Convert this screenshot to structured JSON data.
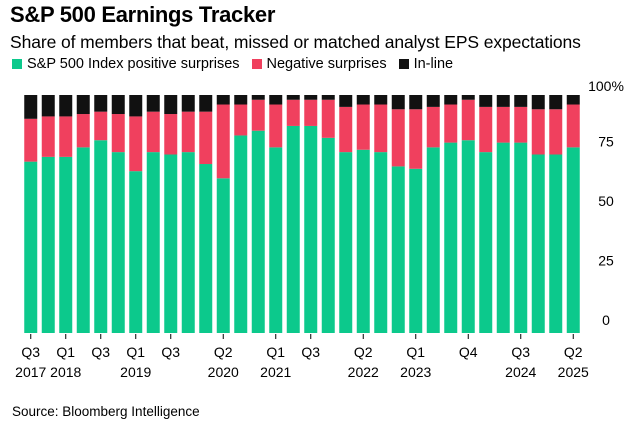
{
  "title": "S&P 500 Earnings Tracker",
  "subtitle": "Share of members that beat, missed or matched analyst EPS expectations",
  "source": "Source: Bloomberg Intelligence",
  "colors": {
    "positive": "#0cc98c",
    "negative": "#f0405e",
    "inline": "#111111"
  },
  "chart_data": {
    "type": "bar",
    "stacked": true,
    "legend_position": "top-left",
    "grid": false,
    "ylim": [
      0,
      100
    ],
    "y_ticks": [
      "0",
      "25",
      "50",
      "75",
      "100%"
    ],
    "y_tick_values": [
      0,
      25,
      50,
      75,
      100
    ],
    "categories": [
      "Q3 2017",
      "Q4 2017",
      "Q1 2018",
      "Q2 2018",
      "Q3 2018",
      "Q4 2018",
      "Q1 2019",
      "Q2 2019",
      "Q3 2019",
      "Q4 2019",
      "Q1 2020",
      "Q2 2020",
      "Q3 2020",
      "Q4 2020",
      "Q1 2021",
      "Q2 2021",
      "Q3 2021",
      "Q4 2021",
      "Q1 2022",
      "Q2 2022",
      "Q3 2022",
      "Q4 2022",
      "Q1 2023",
      "Q2 2023",
      "Q3 2023",
      "Q4 2023",
      "Q1 2024",
      "Q2 2024",
      "Q3 2024",
      "Q4 2024",
      "Q1 2025",
      "Q2 2025"
    ],
    "x_tick_labels": [
      {
        "index": 0,
        "quarter": "Q3",
        "year": "2017"
      },
      {
        "index": 2,
        "quarter": "Q1",
        "year": "2018"
      },
      {
        "index": 4,
        "quarter": "Q3",
        "year": ""
      },
      {
        "index": 6,
        "quarter": "Q1",
        "year": "2019"
      },
      {
        "index": 8,
        "quarter": "Q3",
        "year": ""
      },
      {
        "index": 11,
        "quarter": "Q2",
        "year": "2020"
      },
      {
        "index": 14,
        "quarter": "Q1",
        "year": "2021"
      },
      {
        "index": 16,
        "quarter": "Q3",
        "year": ""
      },
      {
        "index": 19,
        "quarter": "Q2",
        "year": "2022"
      },
      {
        "index": 22,
        "quarter": "Q1",
        "year": "2023"
      },
      {
        "index": 25,
        "quarter": "Q4",
        "year": ""
      },
      {
        "index": 28,
        "quarter": "Q3",
        "year": "2024"
      },
      {
        "index": 31,
        "quarter": "Q2",
        "year": "2025"
      }
    ],
    "series": [
      {
        "name": "S&P 500 Index positive surprises",
        "color": "#0cc98c",
        "values": [
          72,
          74,
          74,
          78,
          81,
          76,
          68,
          76,
          75,
          76,
          71,
          65,
          83,
          85,
          78,
          87,
          87,
          82,
          76,
          77,
          76,
          70,
          69,
          78,
          80,
          81,
          76,
          80,
          80,
          75,
          75,
          78
        ]
      },
      {
        "name": "Negative surprises",
        "color": "#f0405e",
        "values": [
          18,
          17,
          17,
          14,
          12,
          16,
          23,
          17,
          17,
          17,
          22,
          31,
          13,
          13,
          18,
          11,
          11,
          16,
          19,
          19,
          20,
          24,
          25,
          17,
          16,
          17,
          19,
          15,
          15,
          19,
          19,
          18
        ]
      },
      {
        "name": "In-line",
        "color": "#111111",
        "values": [
          10,
          9,
          9,
          8,
          7,
          8,
          9,
          7,
          8,
          7,
          7,
          4,
          4,
          2,
          4,
          2,
          2,
          2,
          5,
          4,
          4,
          6,
          6,
          5,
          4,
          2,
          5,
          5,
          5,
          6,
          6,
          4
        ]
      }
    ]
  }
}
